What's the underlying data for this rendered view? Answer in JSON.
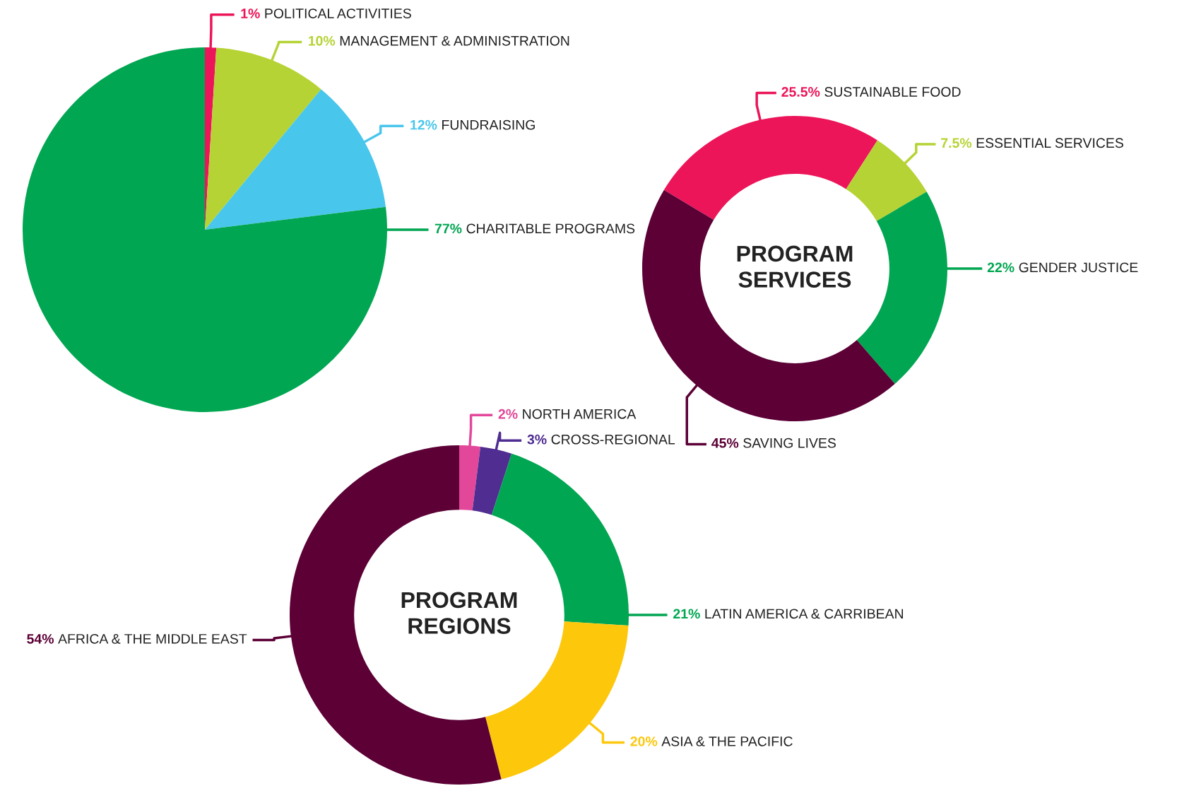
{
  "chart_data": [
    {
      "type": "pie",
      "categories": [
        "POLITICAL ACTIVITIES",
        "MANAGEMENT & ADMINISTRATION",
        "FUNDRAISING",
        "CHARITABLE PROGRAMS"
      ],
      "values": [
        1,
        10,
        12,
        77
      ],
      "colors": [
        "#ec1559",
        "#b5d334",
        "#48c6ec",
        "#00a651"
      ],
      "value_labels": [
        "1%",
        "10%",
        "12%",
        "77%"
      ]
    },
    {
      "type": "donut",
      "title": "PROGRAM\nSERVICES",
      "categories": [
        "SUSTAINABLE FOOD",
        "ESSENTIAL SERVICES",
        "GENDER JUSTICE",
        "SAVING LIVES"
      ],
      "values": [
        25.5,
        7.5,
        22,
        45
      ],
      "colors": [
        "#ec1559",
        "#b5d334",
        "#00a651",
        "#5c0036"
      ],
      "value_labels": [
        "25.5%",
        "7.5%",
        "22%",
        "45%"
      ]
    },
    {
      "type": "donut",
      "title": "PROGRAM\nREGIONS",
      "categories": [
        "NORTH AMERICA",
        "CROSS-REGIONAL",
        "LATIN AMERICA & CARRIBEAN",
        "ASIA & THE PACIFIC",
        "AFRICA & THE MIDDLE EAST"
      ],
      "values": [
        2,
        3,
        21,
        20,
        54
      ],
      "colors": [
        "#e2479a",
        "#4f2d91",
        "#00a651",
        "#fdc70c",
        "#5c0036"
      ],
      "value_labels": [
        "2%",
        "3%",
        "21%",
        "20%",
        "54%"
      ]
    }
  ]
}
